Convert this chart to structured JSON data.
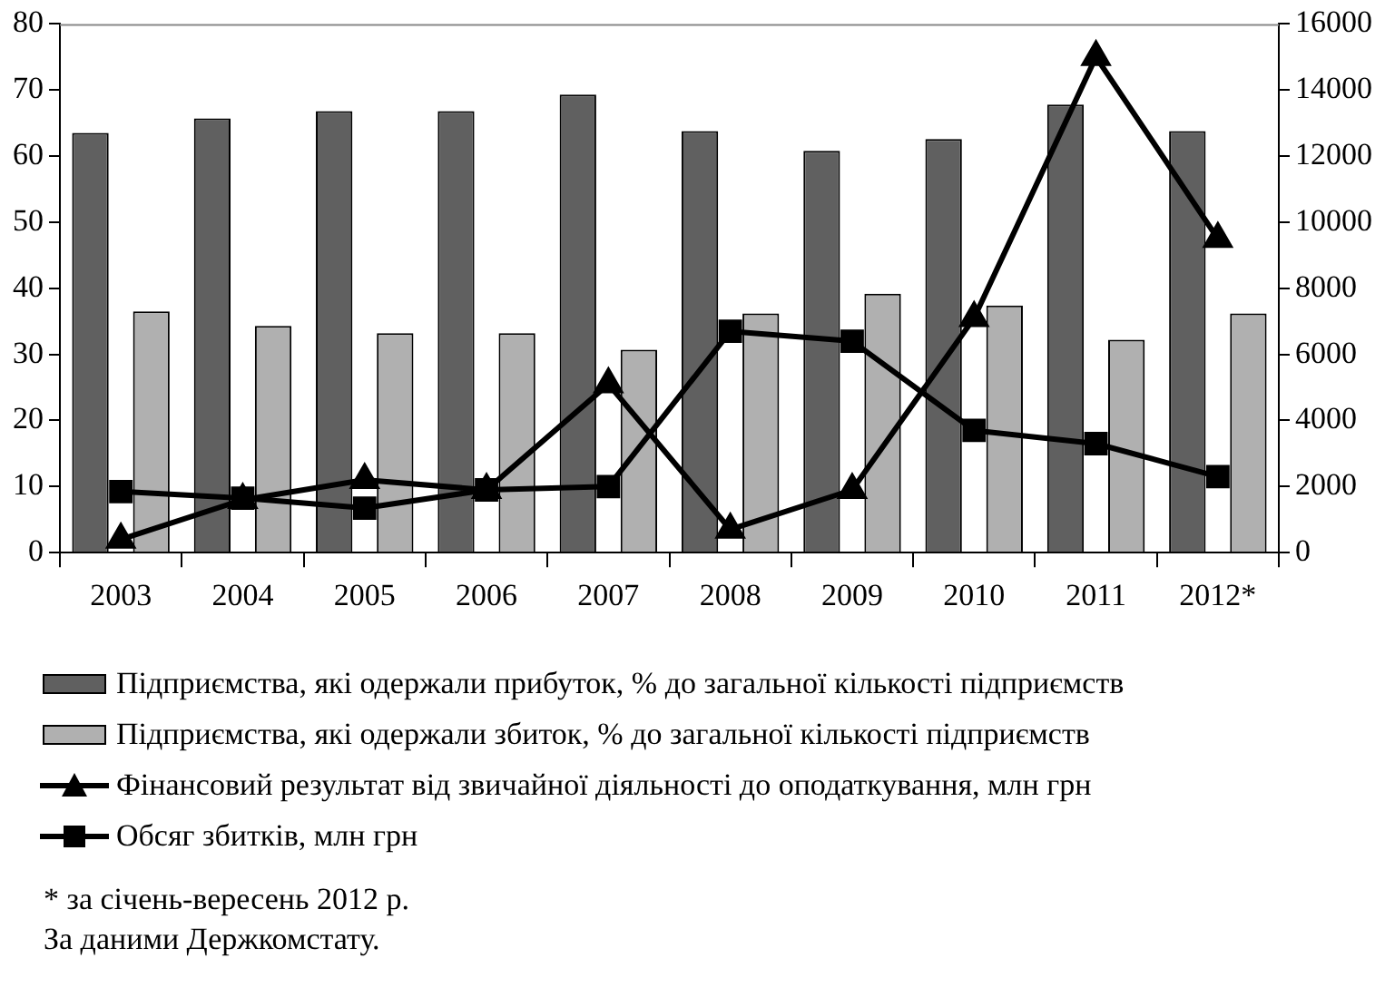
{
  "chart_data": {
    "type": "bar",
    "categories": [
      "2003",
      "2004",
      "2005",
      "2006",
      "2007",
      "2008",
      "2009",
      "2010",
      "2011",
      "2012*"
    ],
    "series": [
      {
        "name": "Підприємства, які одержали прибуток,  % до загальної кількості підприємств",
        "color": "#606060",
        "values": [
          63.5,
          65.7,
          66.8,
          66.8,
          69.3,
          63.8,
          60.8,
          62.6,
          67.8,
          63.8
        ]
      },
      {
        "name": "Підприємства, які одержали збиток,  % до загальної кількості підприємств",
        "color": "#b0b0b0",
        "values": [
          36.5,
          34.3,
          33.2,
          33.2,
          30.7,
          36.2,
          39.2,
          37.4,
          32.2,
          36.2
        ]
      },
      {
        "name": "Фінансовий результат від звичайної діяльності до оподаткування, млн грн",
        "type": "line",
        "axis": "y2",
        "marker": "triangle",
        "color": "#000000",
        "values": [
          400,
          1600,
          2200,
          1900,
          5100,
          700,
          1900,
          7100,
          15000,
          9500
        ]
      },
      {
        "name": "Обсяг збитків, млн грн",
        "type": "line",
        "axis": "y2",
        "marker": "square",
        "color": "#000000",
        "values": [
          1850,
          1650,
          1350,
          1900,
          2000,
          6700,
          6400,
          3700,
          3300,
          2300
        ]
      }
    ],
    "ylim": [
      0,
      80
    ],
    "yticks": [
      0,
      10,
      20,
      30,
      40,
      50,
      60,
      70,
      80
    ],
    "y2lim": [
      0,
      16000
    ],
    "y2ticks": [
      0,
      2000,
      4000,
      6000,
      8000,
      10000,
      12000,
      14000,
      16000
    ],
    "grid": false,
    "legend": "bottom",
    "annotations": [
      "* за січень-вересень 2012 р.",
      "За даними Держкомстату."
    ]
  }
}
